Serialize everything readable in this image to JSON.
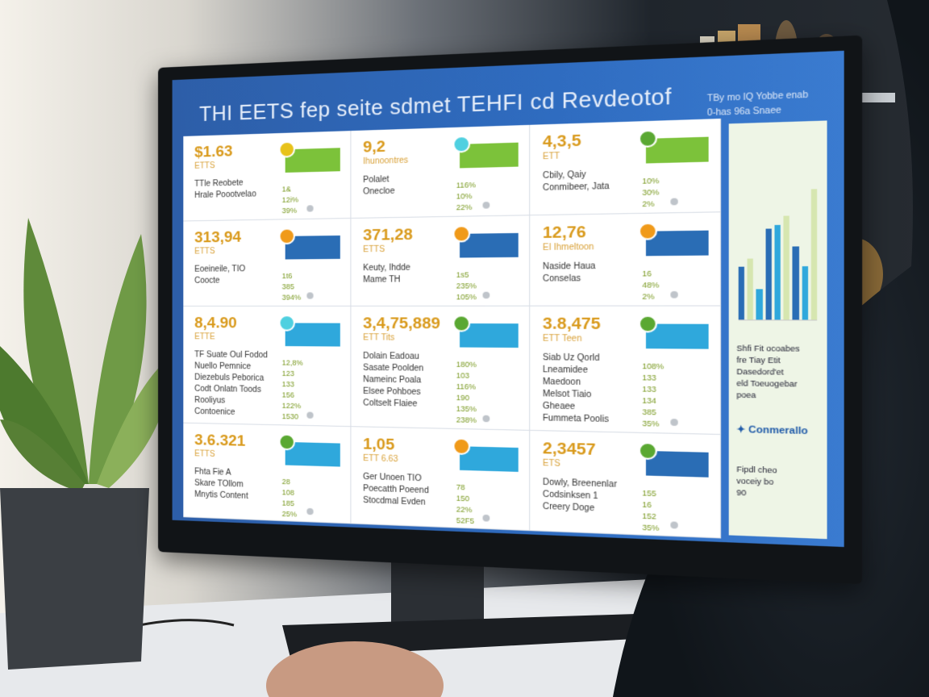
{
  "dashboard": {
    "title": "THI EETS fep seite sdmet TEHFI cd Revdeotof",
    "header_side": [
      "TBy mo IQ Yobbe enab",
      "0-has 96a Snaee"
    ],
    "cards": [
      {
        "value": "$1.63",
        "sub": "ETTS",
        "lines": [
          "TTle Reobete",
          "Hrale Poootvelao"
        ],
        "stats": [
          "1&",
          "12i%",
          "39%"
        ],
        "icon_color": "#e8c21a",
        "bar_color": "#7cc23a"
      },
      {
        "value": "9,2",
        "sub": "Ihunoontres",
        "lines": [
          "Polalet",
          "Onecloe"
        ],
        "stats": [
          "116%",
          "10%",
          "22%"
        ],
        "icon_color": "#4fd0e0",
        "bar_color": "#7cc23a"
      },
      {
        "value": "4,3,5",
        "sub": "ETT",
        "lines": [
          "Cbily, Qaiy",
          "Conmibeer, Jata"
        ],
        "stats": [
          "10%",
          "30%",
          "2%"
        ],
        "icon_color": "#5aa832",
        "bar_color": "#7cc23a"
      },
      {
        "value": "313,94",
        "sub": "ETTS",
        "lines": [
          "Eoeineile, TIO",
          "Coocte"
        ],
        "stats": [
          "1t6",
          "385",
          "394%"
        ],
        "icon_color": "#f09a1a",
        "bar_color": "#2a6db5"
      },
      {
        "value": "371,28",
        "sub": "ETTS",
        "lines": [
          "Keuty, Ihdde",
          "Mame TH"
        ],
        "stats": [
          "1s5",
          "235%",
          "105%"
        ],
        "icon_color": "#f09a1a",
        "bar_color": "#2a6db5"
      },
      {
        "value": "12,76",
        "sub": "EI Ihmeltoon",
        "lines": [
          "Naside Haua",
          "Conselas"
        ],
        "stats": [
          "16",
          "48%",
          "2%"
        ],
        "icon_color": "#f09a1a",
        "bar_color": "#2a6db5"
      },
      {
        "value": "8,4.90",
        "sub": "ETTE",
        "lines": [
          "TF Suate Oul Fodod",
          "Nuello Pemnice",
          "Diezebuls Peborica",
          "Codt Onlatn Toods",
          "Rooliyus",
          "Contoenice"
        ],
        "stats": [
          "12,8%",
          "123",
          "133",
          "156",
          "122%",
          "1530"
        ],
        "icon_color": "#4fd0e0",
        "bar_color": "#2fa8dc"
      },
      {
        "value": "3,4,75,889",
        "sub": "ETT Tits",
        "lines": [
          "Dolain Eadoau",
          "Sasate Poolden",
          "Nameinc Poala",
          "Elsee Pohboes",
          "Coltselt Flaiee"
        ],
        "stats": [
          "180%",
          "103",
          "116%",
          "190",
          "135%",
          "238%"
        ],
        "icon_color": "#5aa832",
        "bar_color": "#2fa8dc"
      },
      {
        "value": "3.8,475",
        "sub": "ETT Teen",
        "lines": [
          "Siab Uz Qorld",
          "Lneamidee",
          "Maedoon",
          "Melsot Tiaio",
          "Gheaee",
          "Fummeta Poolis"
        ],
        "stats": [
          "108%",
          "133",
          "133",
          "134",
          "385",
          "35%"
        ],
        "icon_color": "#5aa832",
        "bar_color": "#2fa8dc"
      },
      {
        "value": "3.6.321",
        "sub": "ETTS",
        "lines": [
          "Fhta Fie A",
          "Skare TOllom",
          "Mnytis Content"
        ],
        "stats": [
          "28",
          "108",
          "185",
          "25%"
        ],
        "icon_color": "#5aa832",
        "bar_color": "#2fa8dc"
      },
      {
        "value": "1,05",
        "sub": "ETT 6.63",
        "lines": [
          "Ger Unoen TIO",
          "Poecatth Poeend",
          "Stocdmal Evden"
        ],
        "stats": [
          "78",
          "150",
          "22%",
          "52F5"
        ],
        "icon_color": "#f09a1a",
        "bar_color": "#2fa8dc"
      },
      {
        "value": "2,3457",
        "sub": "ETS",
        "lines": [
          "Dowly, Breenenlar",
          "Codsinksen 1",
          "Creery Doge"
        ],
        "stats": [
          "155",
          "16",
          "152",
          "35%"
        ],
        "icon_color": "#5aa832",
        "bar_color": "#2a6db5"
      }
    ],
    "sidebar": {
      "bars": [
        {
          "level": 0.35,
          "color": "#2a6db5"
        },
        {
          "level": 0.4,
          "color": "#d6e6b0"
        },
        {
          "level": 0.2,
          "color": "#2fa8dc"
        },
        {
          "level": 0.6,
          "color": "#2a6db5"
        },
        {
          "level": 0.62,
          "color": "#2fa8dc"
        },
        {
          "level": 0.68,
          "color": "#d6e6b0"
        },
        {
          "level": 0.48,
          "color": "#2a6db5"
        },
        {
          "level": 0.35,
          "color": "#2fa8dc"
        },
        {
          "level": 0.85,
          "color": "#d6e6b0"
        }
      ],
      "text": [
        "Shfi Fit ocoabes",
        "fre Tiay Etit",
        "Dasedord'et",
        "eld Toeuogebar",
        "poea"
      ],
      "logo": "Conmerallo",
      "text2": [
        "Fipdl cheo",
        "voceiy bo",
        "90"
      ]
    }
  }
}
